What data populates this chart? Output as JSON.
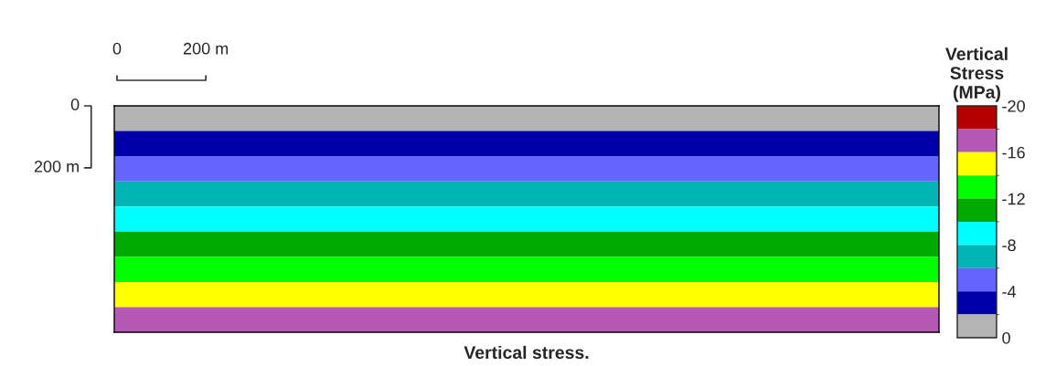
{
  "chart_data": {
    "type": "heatmap",
    "annotations": [
      "0",
      "200 m",
      "0",
      "200 m",
      "Vertical stress."
    ],
    "clabel": "Vertical\nStress\n(MPa)",
    "categories": [
      null
    ],
    "y_categories": [
      null,
      null,
      null,
      null,
      null,
      null,
      null,
      null,
      null
    ],
    "cells": [
      [
        -1
      ],
      [
        -3
      ],
      [
        -5
      ],
      [
        -7
      ],
      [
        -9
      ],
      [
        -11
      ],
      [
        -13
      ],
      [
        -15
      ],
      [
        -17
      ]
    ],
    "clim": [
      0,
      -20
    ],
    "cticks": [
      0,
      -4,
      -8,
      -12,
      -16,
      -20
    ],
    "colors": [
      "#b4b4b4",
      "#0000aa",
      "#6464ff",
      "#00b4b4",
      "#00ffff",
      "#00aa00",
      "#00ff00",
      "#ffff00",
      "#b45ab4",
      "#b40000"
    ]
  }
}
